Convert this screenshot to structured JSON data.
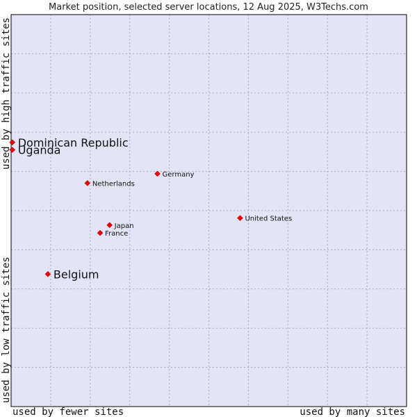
{
  "chart_data": {
    "type": "scatter",
    "title": "Market position, selected server locations, 12 Aug 2025, W3Techs.com",
    "xlabel_left": "used by fewer sites",
    "xlabel_right": "used by many sites",
    "ylabel_bottom": "used by low traffic sites",
    "ylabel_top": "used by high traffic sites",
    "xlim": [
      0,
      100
    ],
    "ylim": [
      0,
      100
    ],
    "grid": true,
    "colors": {
      "plot_bg": "#e4e4f8",
      "point": "#ee0000",
      "border": "#000000"
    },
    "points": [
      {
        "label": "Dominican Republic",
        "x": 0.3,
        "y": 67.4,
        "emphasis": true
      },
      {
        "label": "Uganda",
        "x": 0.3,
        "y": 65.5,
        "emphasis": true
      },
      {
        "label": "Belgium",
        "x": 9.3,
        "y": 33.8,
        "emphasis": true
      },
      {
        "label": "Germany",
        "x": 37.0,
        "y": 59.4,
        "emphasis": false
      },
      {
        "label": "Netherlands",
        "x": 19.3,
        "y": 57.0,
        "emphasis": false
      },
      {
        "label": "United States",
        "x": 57.9,
        "y": 48.1,
        "emphasis": false
      },
      {
        "label": "Japan",
        "x": 24.9,
        "y": 46.3,
        "emphasis": false
      },
      {
        "label": "France",
        "x": 22.5,
        "y": 44.3,
        "emphasis": false
      }
    ]
  }
}
